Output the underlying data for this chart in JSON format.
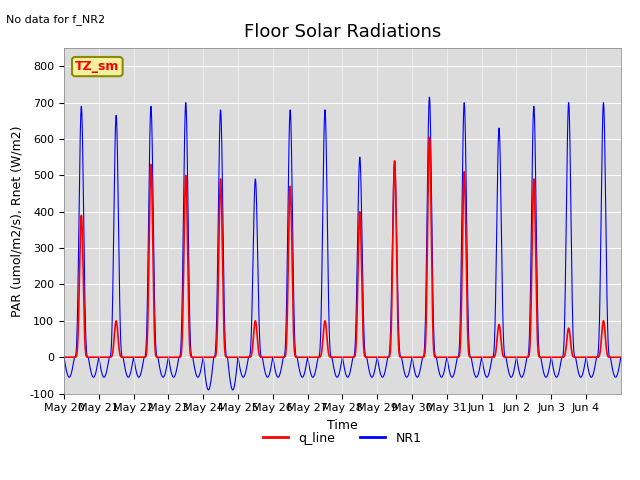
{
  "title": "Floor Solar Radiations",
  "annotation_text": "No data for f_NR2",
  "legend_box_text": "TZ_sm",
  "xlabel": "Time",
  "ylabel": "PAR (umol/m2/s), Rnet (W/m2)",
  "ylim": [
    -100,
    850
  ],
  "yticks": [
    -100,
    0,
    100,
    200,
    300,
    400,
    500,
    600,
    700,
    800
  ],
  "bg_color": "#dcdcdc",
  "line1_color": "red",
  "line2_color": "blue",
  "line1_label": "q_line",
  "line2_label": "NR1",
  "n_days": 16,
  "points_per_day": 288,
  "day_peaks_red": [
    390,
    100,
    530,
    500,
    490,
    100,
    470,
    100,
    400,
    540,
    605,
    510,
    90,
    490,
    80,
    100
  ],
  "day_peaks_blue": [
    690,
    665,
    690,
    700,
    680,
    490,
    680,
    680,
    550,
    535,
    715,
    700,
    630,
    690,
    700,
    700
  ],
  "day_troughs_blue": [
    -55,
    -55,
    -55,
    -55,
    -90,
    -55,
    -55,
    -55,
    -55,
    -55,
    -55,
    -55,
    -55,
    -55,
    -55,
    -55
  ],
  "xtick_labels": [
    "May 20",
    "May 21",
    "May 22",
    "May 23",
    "May 24",
    "May 25",
    "May 26",
    "May 27",
    "May 28",
    "May 29",
    "May 30",
    "May 31",
    "Jun 1",
    "Jun 2",
    "Jun 3",
    "Jun 4"
  ],
  "title_fontsize": 13,
  "label_fontsize": 9,
  "tick_fontsize": 8
}
